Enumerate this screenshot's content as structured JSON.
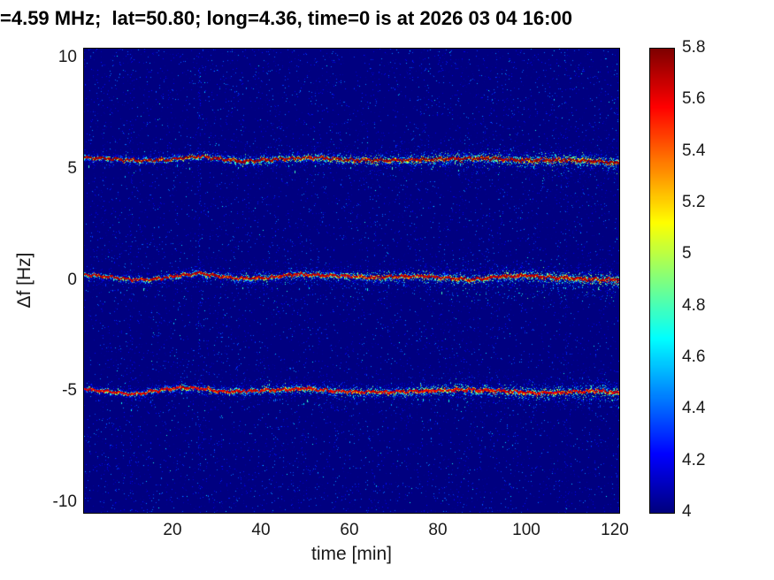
{
  "chart_data": {
    "type": "heatmap",
    "title": "=4.59 MHz;  lat=50.80; long=4.36, time=0 is at 2026 03 04 16:00",
    "xlabel": "time [min]",
    "ylabel": "Δf [Hz]",
    "xlim": [
      0,
      121
    ],
    "ylim": [
      -10.45,
      10.45
    ],
    "xticks": [
      20,
      40,
      60,
      80,
      100,
      120
    ],
    "yticks": [
      10,
      5,
      0,
      -5,
      -10
    ],
    "grid": false,
    "legend": "none",
    "colorbar": {
      "min": 4,
      "max": 5.8,
      "ticks": [
        5.8,
        5.6,
        5.4,
        5.2,
        5,
        4.8,
        4.6,
        4.4,
        4.2,
        4
      ],
      "colormap": "jet",
      "position": "right"
    },
    "background_value": 4,
    "series": [
      {
        "name": "upper-doppler-trace",
        "mean_freq_hz": 5.47,
        "peak_value": 5.8,
        "waypoints": [
          [
            0,
            5.55
          ],
          [
            6,
            5.5
          ],
          [
            12,
            5.42
          ],
          [
            18,
            5.45
          ],
          [
            26,
            5.6
          ],
          [
            31,
            5.5
          ],
          [
            36,
            5.38
          ],
          [
            41,
            5.45
          ],
          [
            47,
            5.52
          ],
          [
            53,
            5.55
          ],
          [
            60,
            5.45
          ],
          [
            68,
            5.42
          ],
          [
            76,
            5.45
          ],
          [
            84,
            5.5
          ],
          [
            92,
            5.52
          ],
          [
            100,
            5.42
          ],
          [
            108,
            5.45
          ],
          [
            114,
            5.4
          ],
          [
            121,
            5.3
          ]
        ]
      },
      {
        "name": "carrier-trace",
        "mean_freq_hz": 0.15,
        "peak_value": 5.75,
        "waypoints": [
          [
            0,
            0.3
          ],
          [
            5,
            0.2
          ],
          [
            10,
            0.08
          ],
          [
            15,
            0.05
          ],
          [
            20,
            0.2
          ],
          [
            26,
            0.35
          ],
          [
            31,
            0.2
          ],
          [
            36,
            0.1
          ],
          [
            42,
            0.15
          ],
          [
            48,
            0.3
          ],
          [
            54,
            0.25
          ],
          [
            60,
            0.2
          ],
          [
            66,
            0.15
          ],
          [
            72,
            0.2
          ],
          [
            78,
            0.2
          ],
          [
            84,
            0.1
          ],
          [
            88,
            0.05
          ],
          [
            94,
            0.2
          ],
          [
            100,
            0.25
          ],
          [
            106,
            0.15
          ],
          [
            112,
            0.1
          ],
          [
            121,
            0.05
          ]
        ]
      },
      {
        "name": "lower-doppler-trace",
        "mean_freq_hz": -4.95,
        "peak_value": 5.7,
        "waypoints": [
          [
            0,
            -4.85
          ],
          [
            6,
            -5
          ],
          [
            11,
            -5.1
          ],
          [
            16,
            -4.95
          ],
          [
            22,
            -4.8
          ],
          [
            27,
            -4.85
          ],
          [
            32,
            -5
          ],
          [
            38,
            -4.95
          ],
          [
            44,
            -4.9
          ],
          [
            50,
            -4.85
          ],
          [
            56,
            -4.95
          ],
          [
            62,
            -5
          ],
          [
            70,
            -5
          ],
          [
            78,
            -4.95
          ],
          [
            86,
            -4.9
          ],
          [
            94,
            -4.95
          ],
          [
            102,
            -5.05
          ],
          [
            110,
            -5
          ],
          [
            116,
            -4.95
          ],
          [
            121,
            -5.05
          ]
        ]
      }
    ],
    "interference_columns_min": [
      {
        "t": 4,
        "strength": 0.2
      },
      {
        "t": 10.6,
        "strength": 0.5
      },
      {
        "t": 26,
        "strength": 0.65
      },
      {
        "t": 109,
        "strength": 0.3
      }
    ]
  },
  "colors": {
    "figure_background": "#ffffff",
    "title_text": "#000000",
    "tick_text": "#1a1a1a",
    "colormap_low": "#00007f",
    "colormap_high": "#7f0000"
  }
}
